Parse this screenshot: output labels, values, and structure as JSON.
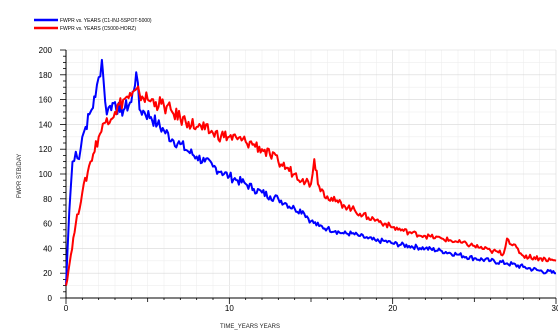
{
  "chart_data": {
    "type": "line",
    "xlabel": "TIME_YEARS  YEARS",
    "ylabel": "FWPR   STB/DAY",
    "xlim": [
      0,
      30
    ],
    "ylim": [
      0,
      200
    ],
    "x_ticks": [
      0,
      10,
      20,
      30
    ],
    "y_ticks": [
      0,
      20,
      40,
      60,
      80,
      100,
      120,
      140,
      160,
      180,
      200
    ],
    "grid": true,
    "legend_position": "top-left",
    "series": [
      {
        "name": "FWPR vs. YEARS (C1-INJ-5SPOT-5000)",
        "color": "#0000ff",
        "x": [
          0,
          0.2,
          0.4,
          0.6,
          0.8,
          1.0,
          1.2,
          1.5,
          1.8,
          2.0,
          2.2,
          2.3,
          2.5,
          2.7,
          3.0,
          3.3,
          3.6,
          4.0,
          4.3,
          4.5,
          4.8,
          5.2,
          5.6,
          6.0,
          6.5,
          7.0,
          7.5,
          8.0,
          8.5,
          9.0,
          9.5,
          10.0,
          10.5,
          11.0,
          11.5,
          12.0,
          12.5,
          13.0,
          13.5,
          14.0,
          14.5,
          15.0,
          15.5,
          16.0,
          16.5,
          17.0,
          17.5,
          18.0,
          18.5,
          19.0,
          19.5,
          20.0,
          21.0,
          22.0,
          23.0,
          24.0,
          25.0,
          26.0,
          27.0,
          28.0,
          29.0,
          30.0
        ],
        "values": [
          10,
          70,
          110,
          118,
          112,
          130,
          138,
          150,
          162,
          178,
          192,
          175,
          148,
          155,
          158,
          150,
          153,
          158,
          182,
          152,
          150,
          146,
          140,
          135,
          128,
          124,
          118,
          114,
          110,
          106,
          102,
          98,
          95,
          92,
          88,
          85,
          82,
          80,
          76,
          72,
          70,
          62,
          58,
          56,
          54,
          52,
          52,
          50,
          48,
          46,
          46,
          44,
          42,
          40,
          38,
          35,
          32,
          30,
          28,
          25,
          22,
          20
        ]
      },
      {
        "name": "FWPR vs. YEARS (C5000-HORZ)",
        "color": "#ff0000",
        "x": [
          0,
          0.3,
          0.6,
          1.0,
          1.5,
          2.0,
          2.5,
          3.0,
          3.5,
          4.0,
          4.5,
          5.0,
          5.5,
          6.0,
          6.5,
          7.0,
          7.5,
          8.0,
          8.5,
          9.0,
          9.5,
          10.0,
          10.5,
          11.0,
          11.5,
          12.0,
          12.5,
          13.0,
          13.5,
          14.0,
          14.5,
          15.0,
          15.2,
          15.5,
          16.0,
          16.5,
          17.0,
          17.5,
          18.0,
          18.5,
          19.0,
          19.5,
          20.0,
          21.0,
          22.0,
          23.0,
          24.0,
          25.0,
          26.0,
          26.8,
          27.0,
          28.0,
          29.0,
          30.0
        ],
        "values": [
          10,
          35,
          60,
          85,
          110,
          130,
          145,
          150,
          160,
          163,
          165,
          160,
          158,
          155,
          150,
          145,
          142,
          138,
          136,
          133,
          131,
          130,
          128,
          126,
          124,
          120,
          115,
          110,
          105,
          100,
          96,
          92,
          112,
          90,
          82,
          78,
          75,
          72,
          68,
          65,
          63,
          60,
          57,
          53,
          50,
          48,
          45,
          42,
          38,
          36,
          48,
          34,
          32,
          30
        ]
      }
    ]
  }
}
